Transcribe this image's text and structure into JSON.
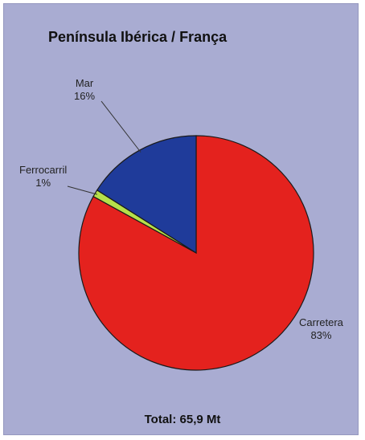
{
  "chart_data": {
    "type": "pie",
    "title": "Península Ibérica / França",
    "footer": "Total: 65,9 Mt",
    "slices": [
      {
        "label": "Carretera",
        "value": 83,
        "display": "83%",
        "color": "#e4221e"
      },
      {
        "label": "Ferrocarril",
        "value": 1,
        "display": "1%",
        "color": "#b6e04a"
      },
      {
        "label": "Mar",
        "value": 16,
        "display": "16%",
        "color": "#1f3b9a"
      }
    ],
    "legend": "none"
  }
}
